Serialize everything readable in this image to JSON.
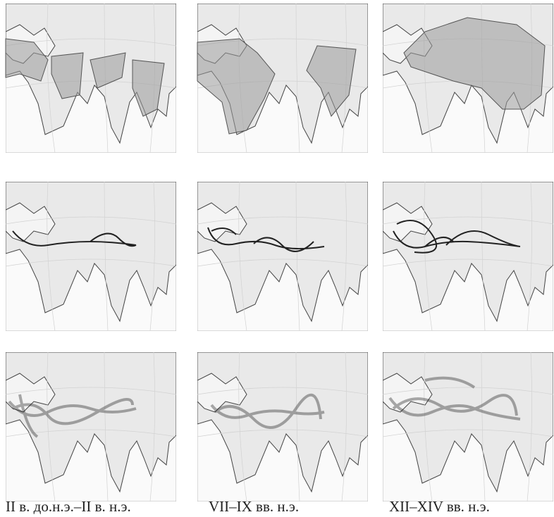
{
  "captions": [
    "II в. до.н.э.–II в. н.э.",
    "VII–IX вв. н.э.",
    "XII–XIV вв. н.э."
  ]
}
